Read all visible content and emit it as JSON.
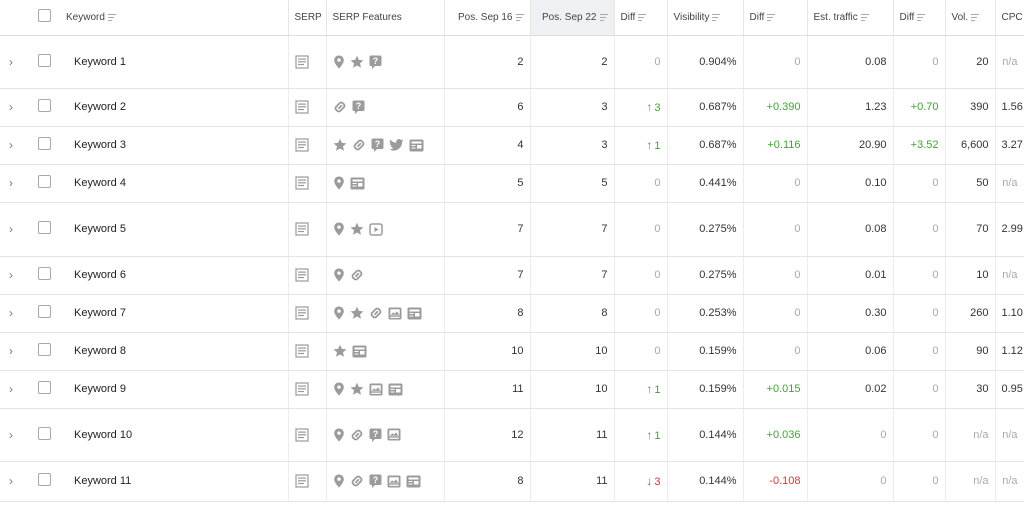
{
  "colors": {
    "green": "#3ea82f",
    "red": "#e0342e",
    "muted": "#a9a9a9",
    "icon": "#9b9b9b",
    "sorted_bg": "#eef1f3"
  },
  "headers": {
    "keyword": "Keyword",
    "serp": "SERP",
    "serp_features": "SERP Features",
    "pos_old": "Pos. Sep 16",
    "pos_new": "Pos. Sep 22",
    "diff": "Diff",
    "visibility": "Visibility",
    "vis_diff": "Diff",
    "traffic": "Est. traffic",
    "traffic_diff": "Diff",
    "volume": "Vol.",
    "cpc": "CPC"
  },
  "rows": [
    {
      "keyword": "Keyword 1",
      "features": [
        "map-pin-icon",
        "star-icon",
        "question-icon"
      ],
      "pos_old": "2",
      "pos_new": "2",
      "diff": "0",
      "diff_dir": "none",
      "visibility": "0.904%",
      "vis_diff": "0",
      "traffic": "0.08",
      "traffic_diff": "0",
      "volume": "20",
      "cpc": "n/a"
    },
    {
      "keyword": "Keyword 2",
      "features": [
        "link-icon",
        "question-icon"
      ],
      "pos_old": "6",
      "pos_new": "3",
      "diff": "3",
      "diff_dir": "up",
      "visibility": "0.687%",
      "vis_diff": "+0.390",
      "traffic": "1.23",
      "traffic_diff": "+0.70",
      "volume": "390",
      "cpc": "1.56"
    },
    {
      "keyword": "Keyword 3",
      "features": [
        "star-icon",
        "link-icon",
        "question-icon",
        "twitter-icon",
        "news-icon"
      ],
      "pos_old": "4",
      "pos_new": "3",
      "diff": "1",
      "diff_dir": "up",
      "visibility": "0.687%",
      "vis_diff": "+0.116",
      "traffic": "20.90",
      "traffic_diff": "+3.52",
      "volume": "6,600",
      "cpc": "3.27"
    },
    {
      "keyword": "Keyword 4",
      "features": [
        "map-pin-icon",
        "news-icon"
      ],
      "pos_old": "5",
      "pos_new": "5",
      "diff": "0",
      "diff_dir": "none",
      "visibility": "0.441%",
      "vis_diff": "0",
      "traffic": "0.10",
      "traffic_diff": "0",
      "volume": "50",
      "cpc": "n/a"
    },
    {
      "keyword": "Keyword 5",
      "features": [
        "map-pin-icon",
        "star-icon",
        "video-icon"
      ],
      "pos_old": "7",
      "pos_new": "7",
      "diff": "0",
      "diff_dir": "none",
      "visibility": "0.275%",
      "vis_diff": "0",
      "traffic": "0.08",
      "traffic_diff": "0",
      "volume": "70",
      "cpc": "2.99"
    },
    {
      "keyword": "Keyword 6",
      "features": [
        "map-pin-icon",
        "link-icon"
      ],
      "pos_old": "7",
      "pos_new": "7",
      "diff": "0",
      "diff_dir": "none",
      "visibility": "0.275%",
      "vis_diff": "0",
      "traffic": "0.01",
      "traffic_diff": "0",
      "volume": "10",
      "cpc": "n/a"
    },
    {
      "keyword": "Keyword 7",
      "features": [
        "map-pin-icon",
        "star-icon",
        "link-icon",
        "image-pack-icon",
        "news-icon"
      ],
      "pos_old": "8",
      "pos_new": "8",
      "diff": "0",
      "diff_dir": "none",
      "visibility": "0.253%",
      "vis_diff": "0",
      "traffic": "0.30",
      "traffic_diff": "0",
      "volume": "260",
      "cpc": "1.10"
    },
    {
      "keyword": "Keyword 8",
      "features": [
        "star-icon",
        "news-icon"
      ],
      "pos_old": "10",
      "pos_new": "10",
      "diff": "0",
      "diff_dir": "none",
      "visibility": "0.159%",
      "vis_diff": "0",
      "traffic": "0.06",
      "traffic_diff": "0",
      "volume": "90",
      "cpc": "1.12"
    },
    {
      "keyword": "Keyword 9",
      "features": [
        "map-pin-icon",
        "star-icon",
        "image-pack-icon",
        "news-icon"
      ],
      "pos_old": "11",
      "pos_new": "10",
      "diff": "1",
      "diff_dir": "up",
      "visibility": "0.159%",
      "vis_diff": "+0.015",
      "traffic": "0.02",
      "traffic_diff": "0",
      "volume": "30",
      "cpc": "0.95"
    },
    {
      "keyword": "Keyword 10",
      "features": [
        "map-pin-icon",
        "link-icon",
        "question-icon",
        "image-pack-icon"
      ],
      "pos_old": "12",
      "pos_new": "11",
      "diff": "1",
      "diff_dir": "up",
      "visibility": "0.144%",
      "vis_diff": "+0.036",
      "traffic": "0",
      "traffic_diff": "0",
      "volume": "n/a",
      "cpc": "n/a"
    },
    {
      "keyword": "Keyword 11",
      "features": [
        "map-pin-icon",
        "link-icon",
        "question-icon",
        "image-pack-icon",
        "news-icon"
      ],
      "pos_old": "8",
      "pos_new": "11",
      "diff": "3",
      "diff_dir": "down",
      "visibility": "0.144%",
      "vis_diff": "-0.108",
      "traffic": "0",
      "traffic_diff": "0",
      "volume": "n/a",
      "cpc": "n/a"
    }
  ]
}
